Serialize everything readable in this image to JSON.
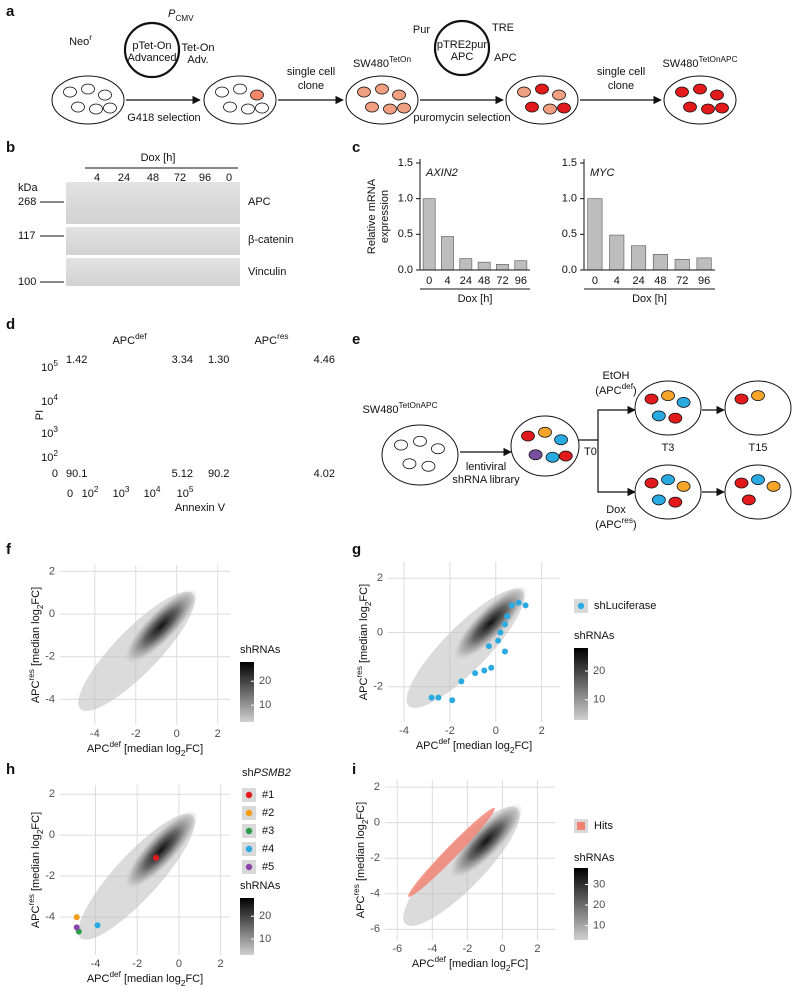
{
  "panel_labels": [
    "a",
    "b",
    "c",
    "d",
    "e",
    "f",
    "g",
    "h",
    "i"
  ],
  "a": {
    "neo": {
      "text": "Neo",
      "sup": "r"
    },
    "pcmv": {
      "it": "P",
      "sub": "CMV"
    },
    "plasmid1": [
      "pTet-On",
      "Advanced"
    ],
    "teton_adv": [
      "Tet-On",
      "Adv."
    ],
    "selection1": "G418 selection",
    "clone1": [
      "single cell",
      "clone"
    ],
    "line1": {
      "text": "SW480",
      "sup": "TetOn"
    },
    "pur": "Pur",
    "tre": "TRE",
    "plasmid2": [
      "pTRE2pur",
      "APC"
    ],
    "apc": "APC",
    "selection2": "puromycin selection",
    "clone2": [
      "single cell",
      "clone"
    ],
    "line2": {
      "text": "SW480",
      "sup": "TetOnAPC"
    }
  },
  "b": {
    "axis": "Dox [h]",
    "times": [
      "4",
      "24",
      "48",
      "72",
      "96",
      "0"
    ],
    "kda": "kDa",
    "markers": [
      "268",
      "117",
      "100"
    ],
    "proteins": [
      "APC",
      "β-catenin",
      "Vinculin"
    ]
  },
  "d": {
    "y_label": "PI",
    "x_label": "Annexin V",
    "plots": [
      {
        "title": {
          "text": "APC",
          "sup": "def"
        },
        "quadrants": [
          "1.42",
          "3.34",
          "90.1",
          "5.12"
        ]
      },
      {
        "title": {
          "text": "APC",
          "sup": "res"
        },
        "quadrants": [
          "1.30",
          "4.46",
          "90.2",
          "4.02"
        ]
      }
    ],
    "yticks": [
      {
        "text": "10",
        "sup": "5"
      },
      {
        "text": "10",
        "sup": "4"
      },
      {
        "text": "10",
        "sup": "3"
      },
      {
        "text": "10",
        "sup": "2"
      },
      "0"
    ],
    "xticks": [
      "0",
      {
        "text": "10",
        "sup": "2"
      },
      {
        "text": "10",
        "sup": "3"
      },
      {
        "text": "10",
        "sup": "4"
      },
      {
        "text": "10",
        "sup": "5"
      }
    ]
  },
  "e": {
    "line": {
      "text": "SW480",
      "sup": "TetOnAPC"
    },
    "library": [
      "lentiviral",
      "shRNA library"
    ],
    "t0": "T0",
    "t3": "T3",
    "t15": "T15",
    "etoh": [
      "EtOH",
      {
        "text": "(APC",
        "sup": "def",
        "text2": ")"
      }
    ],
    "dox": [
      "Dox",
      {
        "text": "(APC",
        "sup": "res",
        "text2": ")"
      }
    ]
  },
  "chart_data": [
    {
      "type": "bar",
      "title": {
        "it": "AXIN2"
      },
      "categories": [
        "0",
        "4",
        "24",
        "48",
        "72",
        "96"
      ],
      "values": [
        1.0,
        0.47,
        0.16,
        0.11,
        0.08,
        0.13
      ],
      "color": "#bdbdbd",
      "ylim": [
        0,
        1.5
      ],
      "yticks": [
        {
          "value": 0,
          "label": "0.0"
        },
        0.5,
        {
          "value": 1,
          "label": "1.0"
        },
        1.5
      ],
      "x_label": "Dox [h]",
      "y_label": [
        "Relative mRNA",
        "expression"
      ]
    },
    {
      "type": "bar",
      "title": {
        "it": "MYC"
      },
      "categories": [
        "0",
        "4",
        "24",
        "48",
        "72",
        "96"
      ],
      "values": [
        1.0,
        0.49,
        0.34,
        0.22,
        0.15,
        0.17
      ],
      "color": "#bdbdbd",
      "ylim": [
        0,
        1.5
      ],
      "yticks": [
        {
          "value": 0,
          "label": "0.0"
        },
        0.5,
        {
          "value": 1,
          "label": "1.0"
        },
        1.5
      ],
      "x_label": "Dox [h]"
    },
    {
      "type": "scatter",
      "xlim": [
        -5.7,
        2.6
      ],
      "ylim": [
        -5.2,
        2.3
      ],
      "xticks": [
        -4,
        -2,
        0,
        2
      ],
      "yticks": [
        -4,
        -2,
        0,
        2
      ],
      "grid": true,
      "x_label": {
        "text": "APC",
        "sup": "def",
        "text2": " [median log",
        "sub": "2",
        "text3": "FC]"
      },
      "y_label": {
        "text": "APC",
        "sup": "res",
        "text2": " [median log",
        "sub": "2",
        "text3": "FC]"
      },
      "colorbar": {
        "title": "shRNAs",
        "lim": [
          3,
          28
        ],
        "ticks": [
          10,
          20
        ]
      },
      "series": []
    },
    {
      "type": "scatter",
      "xlim": [
        -4.7,
        2.8
      ],
      "ylim": [
        -3.3,
        2.6
      ],
      "xticks": [
        -4,
        -2,
        0,
        2
      ],
      "yticks": [
        -2,
        0,
        2
      ],
      "grid": true,
      "x_label": {
        "text": "APC",
        "sup": "def",
        "text2": " [median log",
        "sub": "2",
        "text3": "FC]"
      },
      "y_label": {
        "text": "APC",
        "sup": "res",
        "text2": " [median log",
        "sub": "2",
        "text3": "FC]"
      },
      "colorbar": {
        "title": "shRNAs",
        "lim": [
          3,
          28
        ],
        "ticks": [
          10,
          20
        ]
      },
      "series": [
        {
          "name": "shLuciferase",
          "color": "#29abe2",
          "x": [
            1.3,
            1.0,
            0.7,
            0.5,
            0.4,
            0.2,
            0.1,
            -0.3,
            0.4,
            -0.2,
            -0.5,
            -0.9,
            -1.5,
            -1.9,
            -2.5,
            -2.8
          ],
          "values": [
            1.0,
            1.1,
            1.0,
            0.6,
            0.3,
            0.0,
            -0.3,
            -0.5,
            -0.7,
            -1.3,
            -1.4,
            -1.5,
            -1.8,
            -2.5,
            -2.4,
            -2.4
          ]
        }
      ]
    },
    {
      "type": "scatter",
      "xlim": [
        -5.7,
        2.45
      ],
      "ylim": [
        -5.85,
        2.45
      ],
      "xticks": [
        -4,
        -2,
        0,
        2
      ],
      "yticks": [
        -4,
        -2,
        0,
        2
      ],
      "grid": true,
      "x_label": {
        "text": "APC",
        "sup": "def",
        "text2": " [median log",
        "sub": "2",
        "text3": "FC]"
      },
      "y_label": {
        "text": "APC",
        "sup": "res",
        "text2": " [median log",
        "sub": "2",
        "text3": "FC]"
      },
      "colorbar": {
        "title": "shRNAs",
        "lim": [
          3,
          28
        ],
        "ticks": [
          10,
          20
        ]
      },
      "legend_title": {
        "text": "sh",
        "it": "PSMB2"
      },
      "series": [
        {
          "name": "#1",
          "color": "#e41a1c",
          "x": [
            -1.1
          ],
          "values": [
            -1.1
          ]
        },
        {
          "name": "#2",
          "color": "#f39c12",
          "x": [
            -4.9
          ],
          "values": [
            -4.0
          ]
        },
        {
          "name": "#3",
          "color": "#2a9d4a",
          "x": [
            -4.8
          ],
          "values": [
            -4.7
          ]
        },
        {
          "name": "#4",
          "color": "#29abe2",
          "x": [
            -3.9
          ],
          "values": [
            -4.4
          ]
        },
        {
          "name": "#5",
          "color": "#8e44ad",
          "x": [
            -4.9
          ],
          "values": [
            -4.5
          ]
        }
      ]
    },
    {
      "type": "scatter",
      "xlim": [
        -6.7,
        3.0
      ],
      "ylim": [
        -6.6,
        2.4
      ],
      "xticks": [
        -6,
        -4,
        -2,
        0,
        2
      ],
      "yticks": [
        -6,
        -4,
        -2,
        0,
        2
      ],
      "grid": true,
      "x_label": {
        "text": "APC",
        "sup": "def",
        "text2": " [median log",
        "sub": "2",
        "text3": "FC]"
      },
      "y_label": {
        "text": "APC",
        "sup": "res",
        "text2": " [median log",
        "sub": "2",
        "text3": "FC]"
      },
      "colorbar": {
        "title": "shRNAs",
        "lim": [
          3,
          38
        ],
        "ticks": [
          10,
          20,
          30
        ]
      },
      "series": [
        {
          "name": "Hits",
          "color": "#f28070"
        }
      ]
    }
  ]
}
